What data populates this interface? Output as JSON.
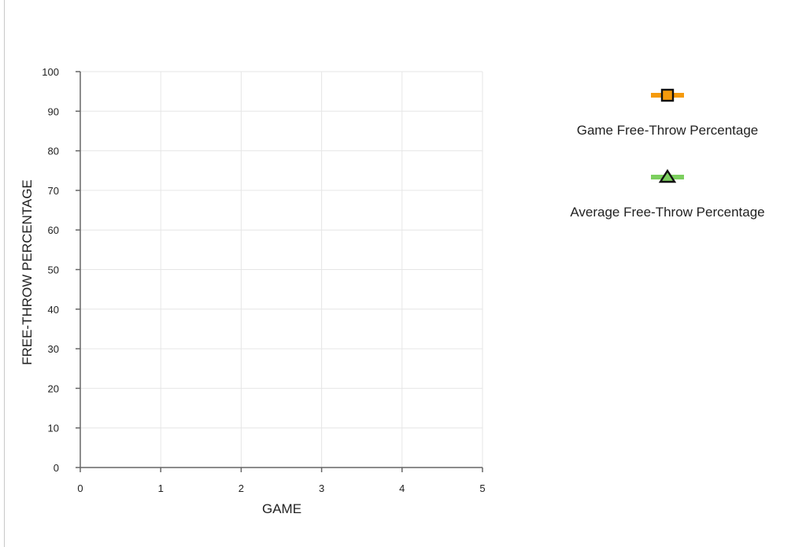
{
  "chart_data": {
    "type": "line",
    "title": "",
    "xlabel": "GAME",
    "ylabel": "FREE-THROW PERCENTAGE",
    "xlim": [
      0,
      5
    ],
    "ylim": [
      0,
      100
    ],
    "x_ticks": [
      0,
      1,
      2,
      3,
      4,
      5
    ],
    "y_ticks": [
      0,
      10,
      20,
      30,
      40,
      50,
      60,
      70,
      80,
      90,
      100
    ],
    "grid": true,
    "legend_position": "right",
    "series": [
      {
        "name": "Game Free-Throw Percentage",
        "color": "#f59a0c",
        "marker": "square",
        "x": [],
        "y": []
      },
      {
        "name": "Average Free-Throw Percentage",
        "color": "#7ccf5f",
        "marker": "triangle",
        "x": [],
        "y": []
      }
    ]
  }
}
